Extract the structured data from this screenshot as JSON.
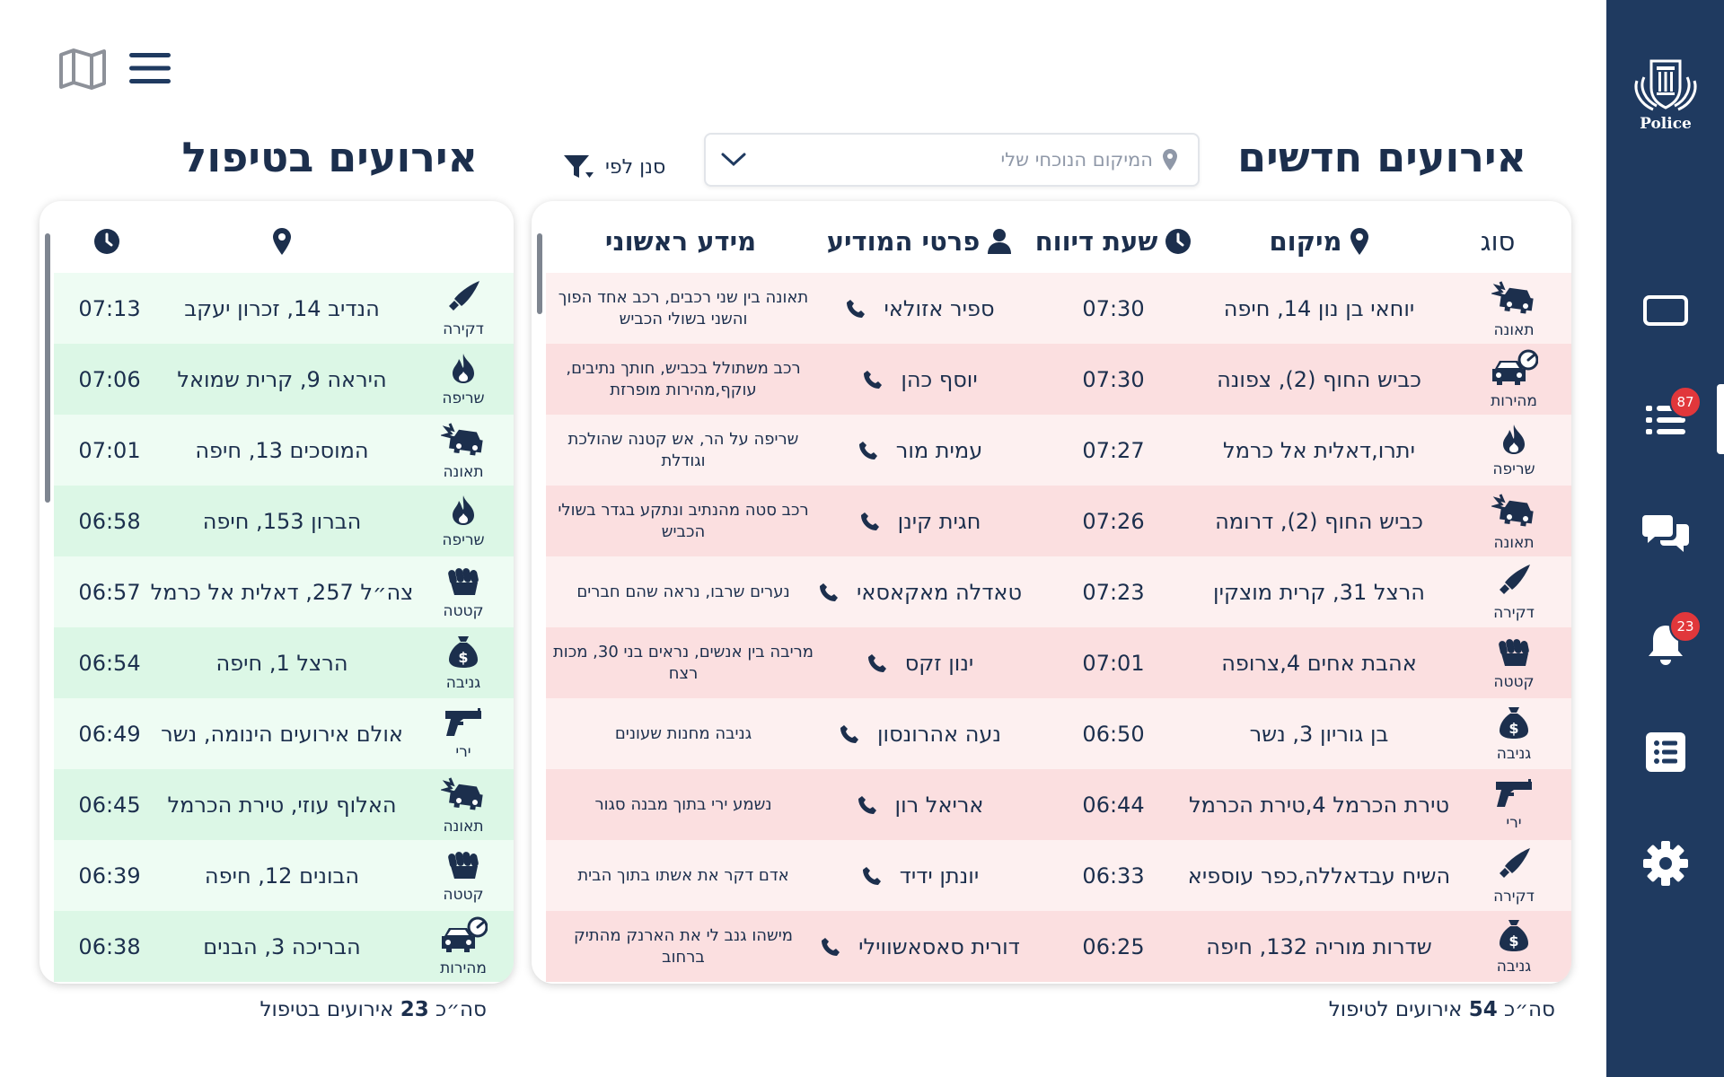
{
  "rail": {
    "logo_text": "Police",
    "nav": [
      {
        "icon": "tablet-icon",
        "badge": ""
      },
      {
        "icon": "event-list-icon",
        "badge": "87"
      },
      {
        "icon": "chat-icon",
        "badge": ""
      },
      {
        "icon": "bell-icon",
        "badge": "23"
      },
      {
        "icon": "checklist-icon",
        "badge": ""
      },
      {
        "icon": "gear-icon",
        "badge": ""
      }
    ]
  },
  "new_events": {
    "title": "אירועים חדשים",
    "search_placeholder": "המיקום הנוכחי שלי",
    "filter_label": "סנן לפי",
    "headers": {
      "type": "סוג",
      "location": "מיקום",
      "time": "שעת דיווח",
      "reporter": "פרטי המודיע",
      "info": "מידע ראשוני"
    },
    "rows": [
      {
        "type": "תאונה",
        "icon": "car-crash-icon",
        "location": "יוחאי בן נון 14, חיפה",
        "time": "07:30",
        "reporter": "ספיר אזולאי",
        "info": "תאונה בין שני רכבים, רכב אחד הפוך והשני בשולי הכביש"
      },
      {
        "type": "מהירות",
        "icon": "speeding-car-icon",
        "location": "כביש החוף (2), צפונה",
        "time": "07:30",
        "reporter": "יוסף כהן",
        "info": "רכב משתולל בכביש, חותך נתיבים, עוקף,מהירות מופרזת"
      },
      {
        "type": "שריפה",
        "icon": "fire-icon",
        "location": "יתרו,דאלית אל כרמל",
        "time": "07:27",
        "reporter": "עמית מור",
        "info": "שריפה על הר, אש קטנה שהולכת וגודלת"
      },
      {
        "type": "תאונה",
        "icon": "car-crash-icon",
        "location": "כביש החוף (2), דרומה",
        "time": "07:26",
        "reporter": "חגית קינן",
        "info": "רכב סטה מהנתיב ונתקע בגדר בשולי הכביש"
      },
      {
        "type": "דקירה",
        "icon": "knife-icon",
        "location": "הרצל 31, קרית מוצקין",
        "time": "07:23",
        "reporter": "טאדלה מאקאסאי",
        "info": "נערים שרבו, נראה שהם חברים"
      },
      {
        "type": "קטטה",
        "icon": "fist-icon",
        "location": "אהבת אחים 4,צרופה",
        "time": "07:01",
        "reporter": "ינון זקס",
        "info": "מריבה בין אנשים, נראים בני 30, מכות רצח"
      },
      {
        "type": "גניבה",
        "icon": "money-bag-icon",
        "location": "בן גוריון 3, נשר",
        "time": "06:50",
        "reporter": "נעה אהרונסון",
        "info": "גניבה מחנות שעונים"
      },
      {
        "type": "ירי",
        "icon": "gun-icon",
        "location": "טירת הכרמל 4,טירת הכרמל",
        "time": "06:44",
        "reporter": "אריאל רון",
        "info": "נשמע ירי בתוך מבנה סגור"
      },
      {
        "type": "דקירה",
        "icon": "knife-icon",
        "location": "השיח עבדאללה,כפר עוספיא",
        "time": "06:33",
        "reporter": "יונתן ידיד",
        "info": "אדם דקר את אשתו בתוך הבית"
      },
      {
        "type": "גניבה",
        "icon": "money-bag-icon",
        "location": "שדרות מוריה 132, חיפה",
        "time": "06:25",
        "reporter": "דורית סאסאשווילי",
        "info": "מישהו גנב לי את הארנק מהתיק ברחוב"
      }
    ],
    "footer_prefix": "סה״כ",
    "footer_count": "54",
    "footer_suffix": "אירועים לטיפול"
  },
  "handling_events": {
    "title": "אירועים בטיפול",
    "rows": [
      {
        "type": "דקירה",
        "icon": "knife-icon",
        "location": "הנדיב 14, זכרון יעקב",
        "time": "07:13"
      },
      {
        "type": "שריפה",
        "icon": "fire-icon",
        "location": "היראה 9, קרית שמואל",
        "time": "07:06"
      },
      {
        "type": "תאונה",
        "icon": "car-crash-icon",
        "location": "המוסכים 13, חיפה",
        "time": "07:01"
      },
      {
        "type": "שריפה",
        "icon": "fire-icon",
        "location": "הברון 153, חיפה",
        "time": "06:58"
      },
      {
        "type": "קטטה",
        "icon": "fist-icon",
        "location": "צה״ל 257, דאלית אל כרמל",
        "time": "06:57"
      },
      {
        "type": "גניבה",
        "icon": "money-bag-icon",
        "location": "הרצל 1, חיפה",
        "time": "06:54"
      },
      {
        "type": "ירי",
        "icon": "gun-icon",
        "location": "אולם אירועים הינומה, נשר",
        "time": "06:49"
      },
      {
        "type": "תאונה",
        "icon": "car-crash-icon",
        "location": "האלוף עוזי, טירת הכרמל",
        "time": "06:45"
      },
      {
        "type": "קטטה",
        "icon": "fist-icon",
        "location": "הבונים 12, חיפה",
        "time": "06:39"
      },
      {
        "type": "מהירות",
        "icon": "speeding-car-icon",
        "location": "הבריכה 3, הבנים",
        "time": "06:38"
      }
    ],
    "footer_prefix": "סה״כ",
    "footer_count": "23",
    "footer_suffix": "אירועים בטיפול"
  },
  "colors": {
    "rail": "#1f3a60",
    "text": "#1c2f4d",
    "new_row_light": "#fdf0f0",
    "new_row_dark": "#fbdfe0",
    "hand_row_light": "#eefcf3",
    "hand_row_dark": "#dcf7e6",
    "badge": "#e1373b"
  }
}
